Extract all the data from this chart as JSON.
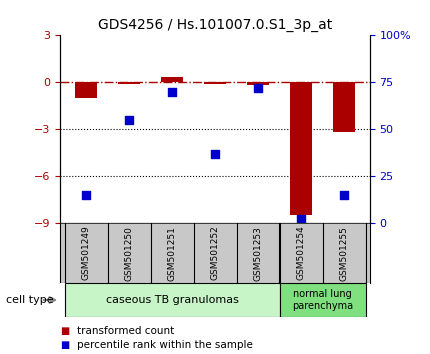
{
  "title": "GDS4256 / Hs.101007.0.S1_3p_at",
  "samples": [
    "GSM501249",
    "GSM501250",
    "GSM501251",
    "GSM501252",
    "GSM501253",
    "GSM501254",
    "GSM501255"
  ],
  "red_bars": [
    -1.0,
    -0.1,
    0.35,
    -0.1,
    -0.15,
    -8.5,
    -3.2
  ],
  "blue_right_vals": [
    15,
    55,
    70,
    37,
    72,
    2,
    15
  ],
  "ylim_left": [
    -9,
    3
  ],
  "ylim_right": [
    0,
    100
  ],
  "left_ticks": [
    3,
    0,
    -3,
    -6,
    -9
  ],
  "right_ticks": [
    100,
    75,
    50,
    25,
    0
  ],
  "right_tick_labels": [
    "100%",
    "75",
    "50",
    "25",
    "0"
  ],
  "dotted_lines": [
    -3,
    -6
  ],
  "group1_label": "caseous TB granulomas",
  "group2_label": "normal lung\nparenchyma",
  "group1_color": "#c8f5c8",
  "group2_color": "#80e080",
  "cell_type_label": "cell type",
  "legend_red": "transformed count",
  "legend_blue": "percentile rank within the sample",
  "red_color": "#aa0000",
  "blue_color": "#0000cc",
  "bg_color": "#ffffff",
  "sample_box_color": "#c8c8c8",
  "bar_width": 0.5,
  "dot_size": 35,
  "n_group1": 5,
  "n_group2": 2
}
